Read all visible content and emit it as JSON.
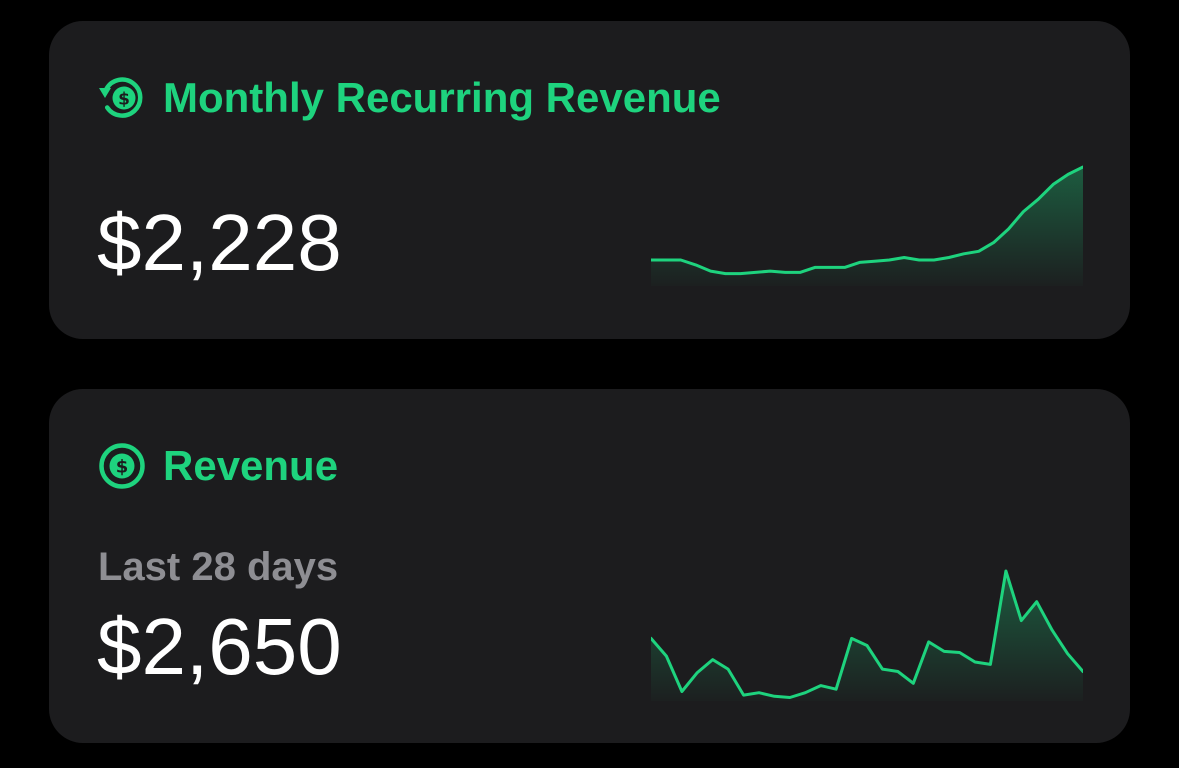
{
  "accent_color": "#1ed37e",
  "card_background": "#1c1c1e",
  "mrr_card": {
    "icon": "recurring-dollar-icon",
    "title": "Monthly Recurring Revenue",
    "value": "$2,228"
  },
  "revenue_card": {
    "icon": "dollar-circle-icon",
    "title": "Revenue",
    "period_label": "Last 28 days",
    "value": "$2,650"
  },
  "chart_data": [
    {
      "type": "area",
      "series": [
        {
          "values": [
            21,
            21,
            21,
            17,
            12,
            10,
            10,
            11,
            12,
            11,
            11,
            15,
            15,
            15,
            19,
            20,
            21,
            23,
            21,
            21,
            23,
            26,
            28,
            35,
            46,
            60,
            70,
            82,
            90,
            96
          ]
        }
      ]
    },
    {
      "type": "area",
      "series": [
        {
          "values": [
            53,
            38,
            8,
            24,
            35,
            27,
            5,
            7,
            4,
            3,
            7,
            13,
            10,
            53,
            47,
            27,
            25,
            15,
            50,
            42,
            41,
            33,
            31,
            110,
            68,
            84,
            60,
            40,
            25
          ]
        }
      ]
    }
  ]
}
